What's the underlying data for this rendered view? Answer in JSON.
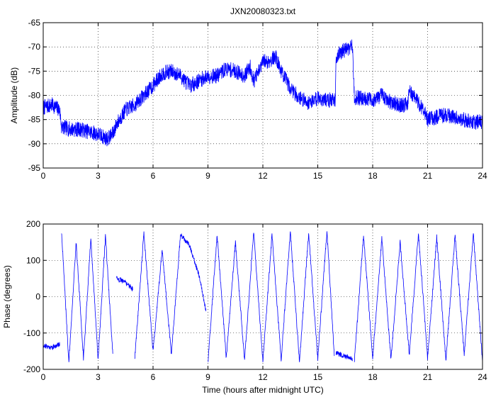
{
  "chart_data": [
    {
      "type": "line",
      "title": "JXN20080323.txt",
      "xlabel": "",
      "ylabel": "Amplitude (dB)",
      "xlim": [
        0,
        24
      ],
      "ylim": [
        -95,
        -65
      ],
      "xticks": [
        "0",
        "3",
        "6",
        "9",
        "12",
        "15",
        "18",
        "21",
        "24"
      ],
      "yticks": [
        "-65",
        "-70",
        "-75",
        "-80",
        "-85",
        "-90",
        "-95"
      ],
      "grid": true,
      "color": "#0000ff",
      "x": [
        0,
        0.5,
        0.9,
        1.0,
        1.5,
        2.0,
        2.5,
        3.0,
        3.5,
        3.8,
        4.0,
        4.5,
        5.0,
        5.5,
        6.0,
        6.5,
        7.0,
        7.5,
        8.0,
        8.5,
        9.0,
        9.5,
        10.0,
        10.5,
        11.0,
        11.3,
        11.5,
        11.8,
        12.0,
        12.3,
        12.7,
        13.0,
        13.5,
        14.0,
        14.5,
        15.0,
        15.5,
        15.95,
        16.0,
        16.5,
        16.9,
        17.0,
        17.5,
        18.0,
        18.5,
        19.0,
        19.5,
        19.9,
        20.0,
        20.3,
        20.8,
        21.0,
        21.5,
        22.0,
        22.5,
        23.0,
        23.5,
        24.0
      ],
      "y": [
        -82.5,
        -82,
        -83,
        -86.5,
        -87,
        -87,
        -87.5,
        -88,
        -89,
        -88,
        -86,
        -83,
        -82,
        -80,
        -78,
        -75.5,
        -75,
        -76,
        -78,
        -77,
        -76,
        -76,
        -74.5,
        -75,
        -76,
        -74,
        -77,
        -75,
        -73,
        -73,
        -72,
        -75,
        -78.5,
        -80.5,
        -81.5,
        -80.5,
        -81,
        -81,
        -72,
        -70.5,
        -70,
        -80.5,
        -80.5,
        -81,
        -80,
        -81.5,
        -82,
        -82,
        -79,
        -80.5,
        -83,
        -85,
        -84.5,
        -84,
        -84.5,
        -85,
        -85.5,
        -85.5
      ]
    },
    {
      "type": "line",
      "title": "",
      "xlabel": "Time (hours after midnight UTC)",
      "ylabel": "Phase (degrees)",
      "xlim": [
        0,
        24
      ],
      "ylim": [
        -200,
        200
      ],
      "xticks": [
        "0",
        "3",
        "6",
        "9",
        "12",
        "15",
        "18",
        "21",
        "24"
      ],
      "yticks": [
        "200",
        "100",
        "0",
        "-100",
        "-200"
      ],
      "grid": true,
      "color": "#0000ff",
      "segments": [
        {
          "x": [
            0,
            0.5,
            0.9
          ],
          "y": [
            -135,
            -140,
            -130
          ]
        },
        {
          "x": [
            1.0,
            1.4,
            1.8,
            2.2,
            2.6,
            3.0,
            3.4,
            3.8
          ],
          "y": [
            180,
            -180,
            150,
            -170,
            160,
            -175,
            170,
            -160
          ]
        },
        {
          "x": [
            4.0,
            4.5,
            4.9
          ],
          "y": [
            50,
            40,
            20
          ]
        },
        {
          "x": [
            5.0,
            5.5,
            6.0,
            6.5,
            7.0,
            7.5,
            8.0,
            8.5,
            8.9
          ],
          "y": [
            -170,
            175,
            -150,
            130,
            -160,
            170,
            140,
            60,
            -40
          ]
        },
        {
          "x": [
            9.0,
            9.5,
            10.0,
            10.5,
            11.0,
            11.5,
            12.0,
            12.5,
            13.0,
            13.5,
            14.0,
            14.5,
            15.0,
            15.5,
            15.9
          ],
          "y": [
            -180,
            170,
            -170,
            150,
            -175,
            180,
            -180,
            170,
            -175,
            180,
            -180,
            175,
            -170,
            180,
            -160
          ]
        },
        {
          "x": [
            16.0,
            16.5,
            16.9
          ],
          "y": [
            -155,
            -165,
            -170
          ]
        },
        {
          "x": [
            17.0,
            17.5,
            18.0,
            18.5,
            19.0,
            19.5,
            20.0,
            20.5,
            21.0,
            21.5,
            22.0,
            22.5,
            23.0,
            23.5,
            24.0
          ],
          "y": [
            -180,
            170,
            -170,
            160,
            -175,
            150,
            -160,
            175,
            -170,
            165,
            -175,
            170,
            -160,
            175,
            -180
          ]
        }
      ]
    }
  ]
}
